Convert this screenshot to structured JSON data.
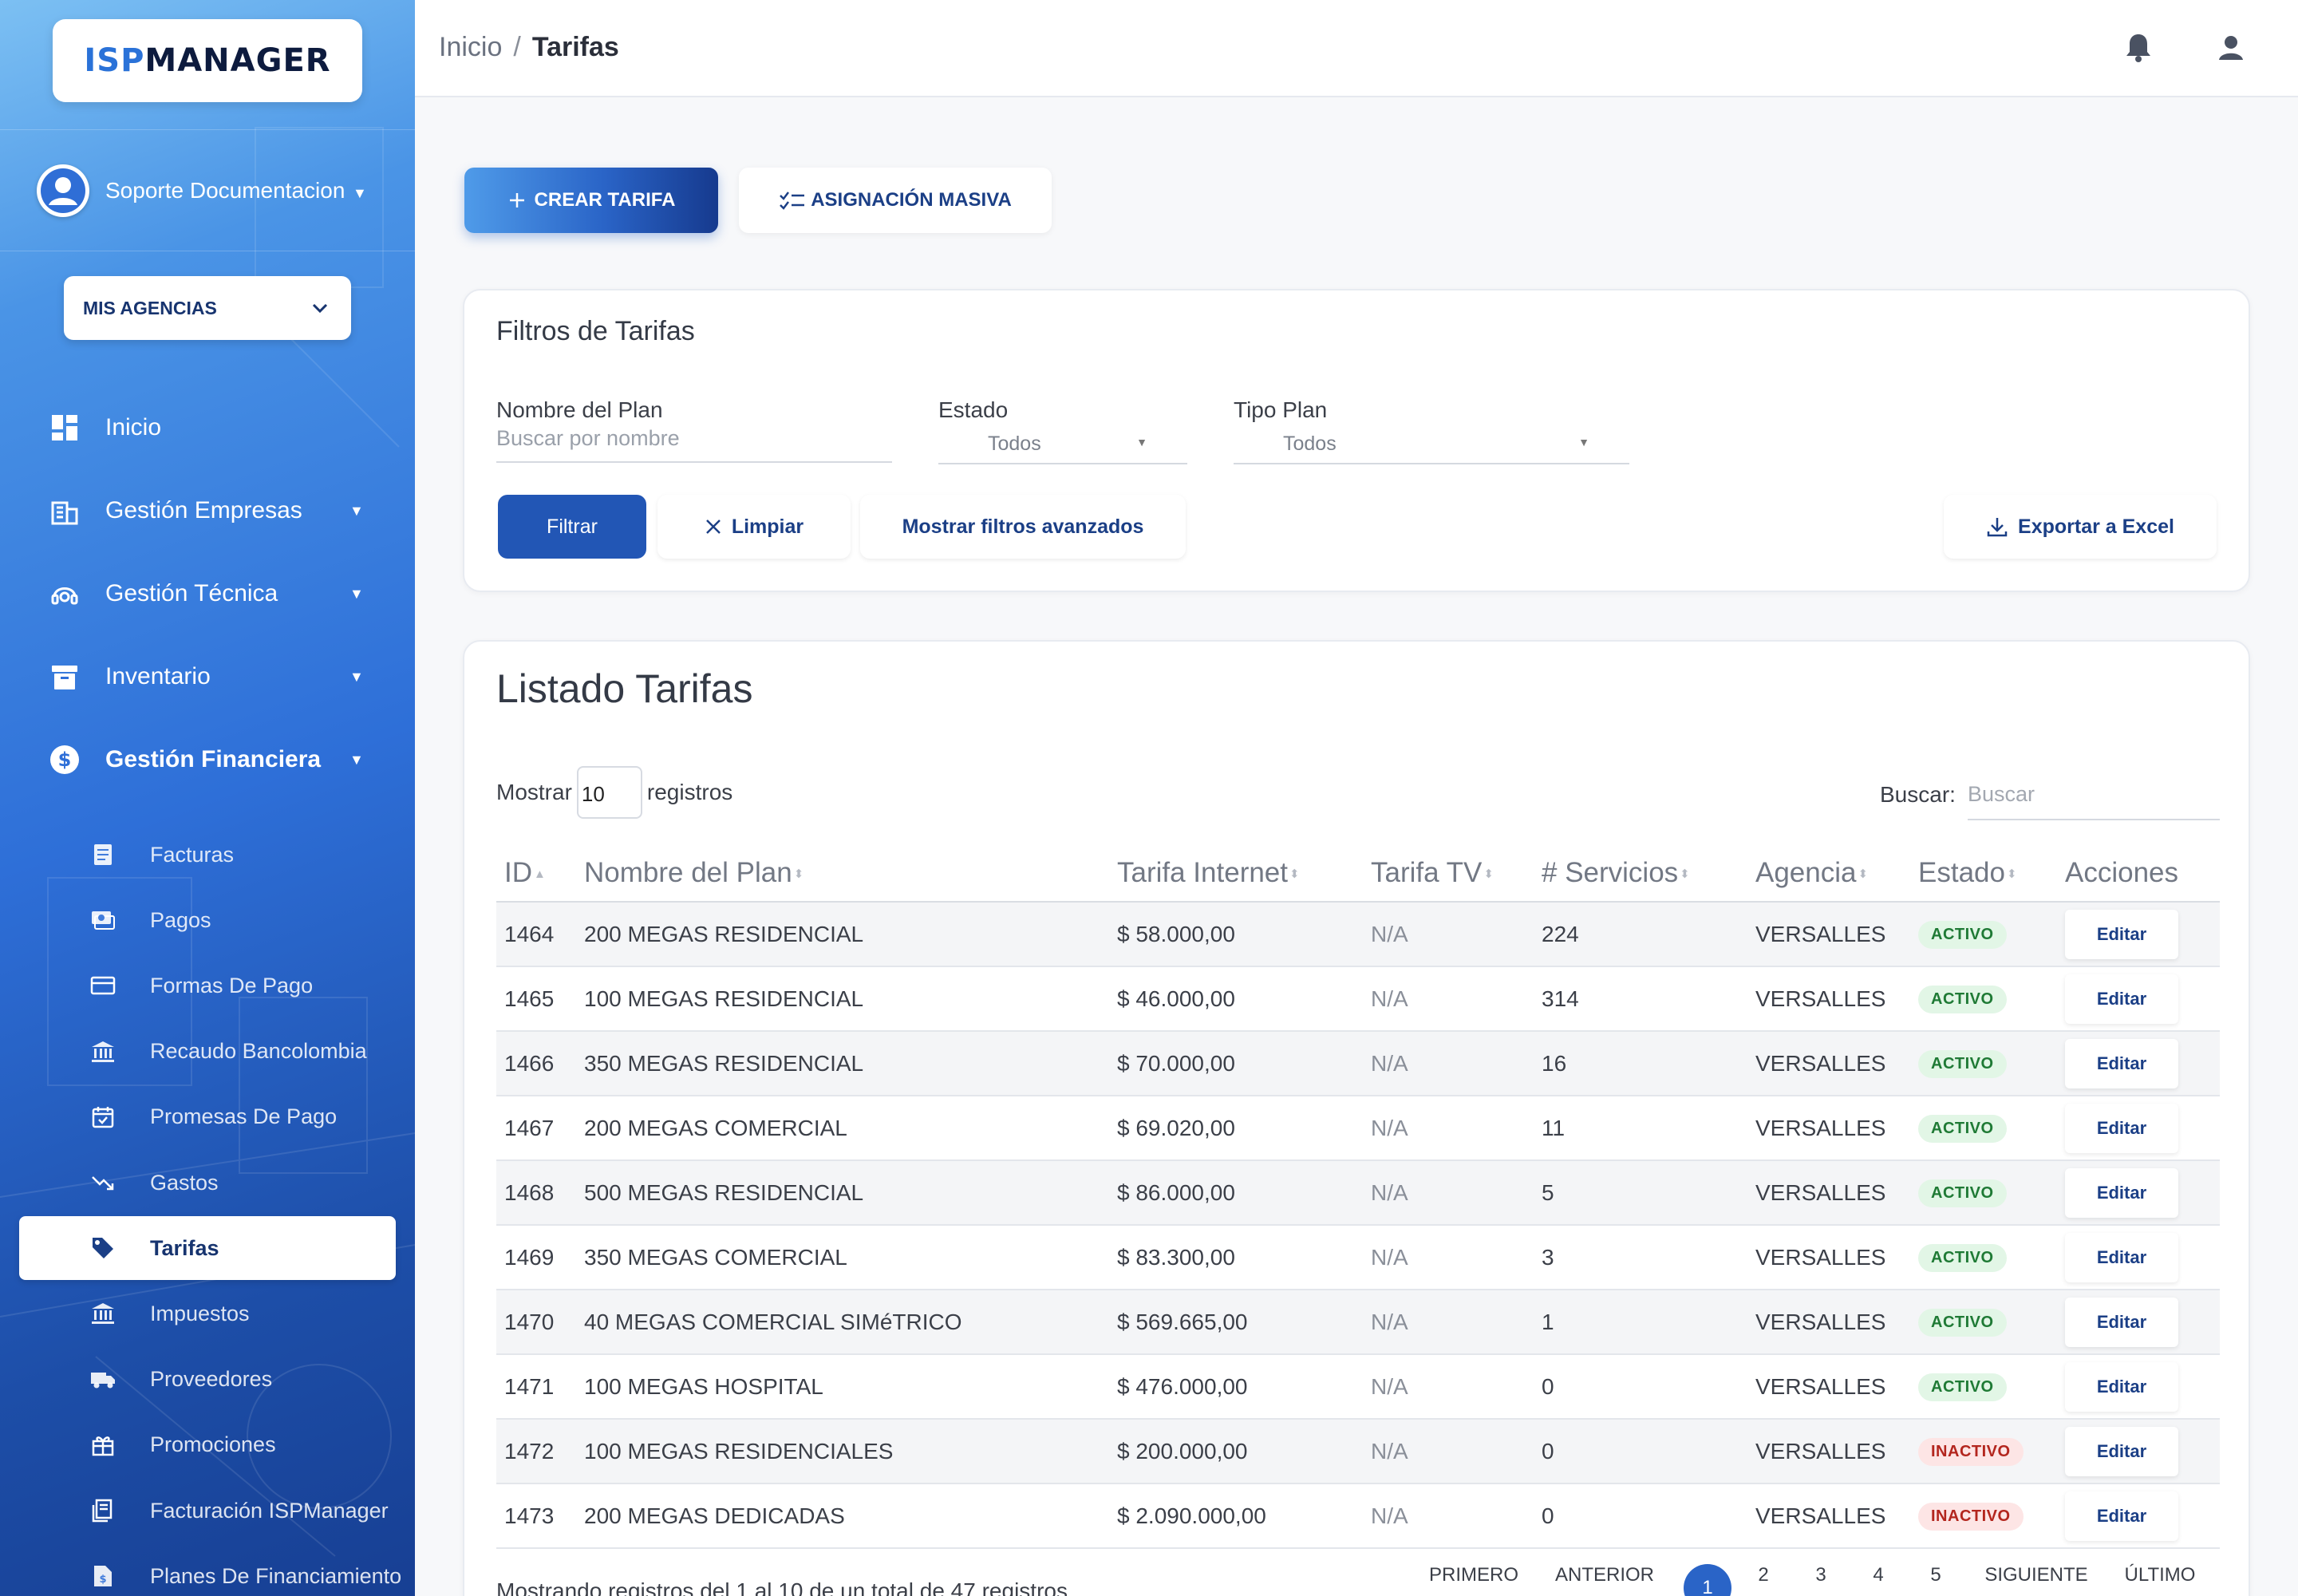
{
  "brand": {
    "part1": "ISP",
    "part2": "MANAGER"
  },
  "user": {
    "name": "Soporte Documentacion"
  },
  "agency_selector": {
    "label": "MIS AGENCIAS"
  },
  "nav": {
    "inicio": "Inicio",
    "empresas": "Gestión Empresas",
    "tecnica": "Gestión Técnica",
    "inventario": "Inventario",
    "financiera": "Gestión Financiera"
  },
  "subnav": [
    {
      "label": "Facturas",
      "icon": "invoice-icon"
    },
    {
      "label": "Pagos",
      "icon": "payments-icon"
    },
    {
      "label": "Formas De Pago",
      "icon": "card-icon"
    },
    {
      "label": "Recaudo Bancolombia",
      "icon": "bank-icon"
    },
    {
      "label": "Promesas De Pago",
      "icon": "calendar-icon"
    },
    {
      "label": "Gastos",
      "icon": "trend-down-icon"
    },
    {
      "label": "Tarifas",
      "icon": "tag-icon"
    },
    {
      "label": "Impuestos",
      "icon": "bank-icon"
    },
    {
      "label": "Proveedores",
      "icon": "truck-icon"
    },
    {
      "label": "Promociones",
      "icon": "gift-icon"
    },
    {
      "label": "Facturación ISPManager",
      "icon": "receipt-icon"
    },
    {
      "label": "Planes De Financiamiento",
      "icon": "document-icon"
    }
  ],
  "breadcrumb": {
    "home": "Inicio",
    "sep": "/",
    "current": "Tarifas"
  },
  "actions": {
    "create": "CREAR TARIFA",
    "mass": "ASIGNACIÓN MASIVA"
  },
  "filters": {
    "title": "Filtros de Tarifas",
    "name_label": "Nombre del Plan",
    "name_placeholder": "Buscar por nombre",
    "estado_label": "Estado",
    "estado_value": "Todos",
    "tipo_label": "Tipo Plan",
    "tipo_value": "Todos",
    "filter_btn": "Filtrar",
    "clear_btn": "Limpiar",
    "advanced_btn": "Mostrar filtros avanzados",
    "export_btn": "Exportar a Excel"
  },
  "list": {
    "title": "Listado Tarifas",
    "show_prefix": "Mostrar",
    "show_value": "10",
    "show_suffix": "registros",
    "search_label": "Buscar:",
    "search_placeholder": "Buscar",
    "columns": [
      "ID",
      "Nombre del Plan",
      "Tarifa Internet",
      "Tarifa TV",
      "# Servicios",
      "Agencia",
      "Estado",
      "Acciones"
    ],
    "edit_label": "Editar",
    "rows": [
      {
        "id": "1464",
        "plan": "200 MEGAS RESIDENCIAL",
        "internet": "$ 58.000,00",
        "tv": "N/A",
        "services": "224",
        "agency": "VERSALLES",
        "status": "ACTIVO"
      },
      {
        "id": "1465",
        "plan": "100 MEGAS RESIDENCIAL",
        "internet": "$ 46.000,00",
        "tv": "N/A",
        "services": "314",
        "agency": "VERSALLES",
        "status": "ACTIVO"
      },
      {
        "id": "1466",
        "plan": "350 MEGAS RESIDENCIAL",
        "internet": "$ 70.000,00",
        "tv": "N/A",
        "services": "16",
        "agency": "VERSALLES",
        "status": "ACTIVO"
      },
      {
        "id": "1467",
        "plan": "200 MEGAS COMERCIAL",
        "internet": "$ 69.020,00",
        "tv": "N/A",
        "services": "11",
        "agency": "VERSALLES",
        "status": "ACTIVO"
      },
      {
        "id": "1468",
        "plan": "500 MEGAS RESIDENCIAL",
        "internet": "$ 86.000,00",
        "tv": "N/A",
        "services": "5",
        "agency": "VERSALLES",
        "status": "ACTIVO"
      },
      {
        "id": "1469",
        "plan": "350 MEGAS COMERCIAL",
        "internet": "$ 83.300,00",
        "tv": "N/A",
        "services": "3",
        "agency": "VERSALLES",
        "status": "ACTIVO"
      },
      {
        "id": "1470",
        "plan": "40 MEGAS COMERCIAL SIMéTRICO",
        "internet": "$ 569.665,00",
        "tv": "N/A",
        "services": "1",
        "agency": "VERSALLES",
        "status": "ACTIVO"
      },
      {
        "id": "1471",
        "plan": "100 MEGAS HOSPITAL",
        "internet": "$ 476.000,00",
        "tv": "N/A",
        "services": "0",
        "agency": "VERSALLES",
        "status": "ACTIVO"
      },
      {
        "id": "1472",
        "plan": "100 MEGAS RESIDENCIALES",
        "internet": "$ 200.000,00",
        "tv": "N/A",
        "services": "0",
        "agency": "VERSALLES",
        "status": "INACTIVO"
      },
      {
        "id": "1473",
        "plan": "200 MEGAS DEDICADAS",
        "internet": "$ 2.090.000,00",
        "tv": "N/A",
        "services": "0",
        "agency": "VERSALLES",
        "status": "INACTIVO"
      }
    ],
    "footer_info": "Mostrando registros del 1 al 10 de un total de 47 registros"
  },
  "pagination": {
    "first": "PRIMERO",
    "prev": "ANTERIOR",
    "pages": [
      "1",
      "2",
      "3",
      "4",
      "5"
    ],
    "next": "SIGUIENTE",
    "last": "ÚLTIMO",
    "current": "1"
  },
  "colors": {
    "primary": "#2256b5",
    "sidebar_top": "#7cc0f3",
    "sidebar_bottom": "#173f93",
    "active_green": "#1f7a35",
    "inactive_red": "#b3261e"
  }
}
